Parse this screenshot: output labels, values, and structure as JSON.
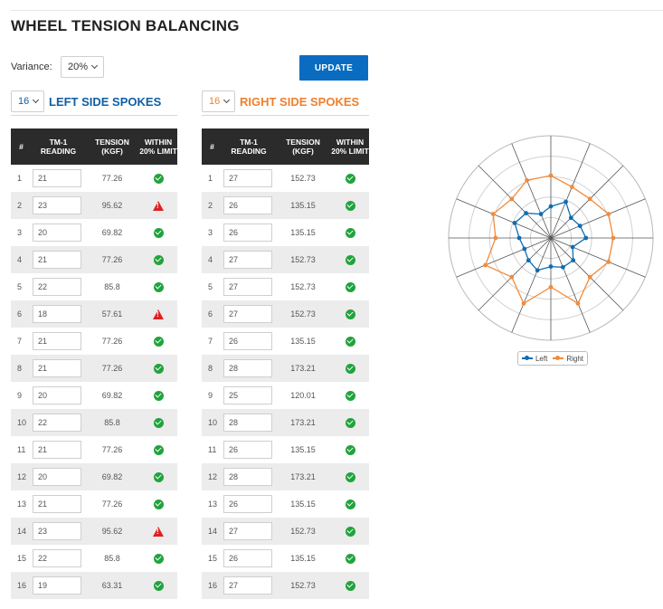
{
  "page": {
    "title": "WHEEL TENSION BALANCING"
  },
  "controls": {
    "variance_label": "Variance:",
    "variance_value": "20%",
    "update_label": "UPDATE"
  },
  "left": {
    "count": "16",
    "title": "LEFT SIDE SPOKES",
    "color": "#0d5fa6",
    "headers": [
      "#",
      "TM-1 READING",
      "TENSION (KGF)",
      "WITHIN 20% LIMIT"
    ],
    "rows": [
      {
        "n": "1",
        "reading": "21",
        "tension": "77.26",
        "status": "ok"
      },
      {
        "n": "2",
        "reading": "23",
        "tension": "95.62",
        "status": "warn"
      },
      {
        "n": "3",
        "reading": "20",
        "tension": "69.82",
        "status": "ok"
      },
      {
        "n": "4",
        "reading": "21",
        "tension": "77.26",
        "status": "ok"
      },
      {
        "n": "5",
        "reading": "22",
        "tension": "85.8",
        "status": "ok"
      },
      {
        "n": "6",
        "reading": "18",
        "tension": "57.61",
        "status": "warn"
      },
      {
        "n": "7",
        "reading": "21",
        "tension": "77.26",
        "status": "ok"
      },
      {
        "n": "8",
        "reading": "21",
        "tension": "77.26",
        "status": "ok"
      },
      {
        "n": "9",
        "reading": "20",
        "tension": "69.82",
        "status": "ok"
      },
      {
        "n": "10",
        "reading": "22",
        "tension": "85.8",
        "status": "ok"
      },
      {
        "n": "11",
        "reading": "21",
        "tension": "77.26",
        "status": "ok"
      },
      {
        "n": "12",
        "reading": "20",
        "tension": "69.82",
        "status": "ok"
      },
      {
        "n": "13",
        "reading": "21",
        "tension": "77.26",
        "status": "ok"
      },
      {
        "n": "14",
        "reading": "23",
        "tension": "95.62",
        "status": "warn"
      },
      {
        "n": "15",
        "reading": "22",
        "tension": "85.8",
        "status": "ok"
      },
      {
        "n": "16",
        "reading": "19",
        "tension": "63.31",
        "status": "ok"
      }
    ]
  },
  "right": {
    "count": "16",
    "title": "RIGHT SIDE SPOKES",
    "color": "#f07f2c",
    "headers": [
      "#",
      "TM-1 READING",
      "TENSION (KGF)",
      "WITHIN 20% LIMIT"
    ],
    "rows": [
      {
        "n": "1",
        "reading": "27",
        "tension": "152.73",
        "status": "ok"
      },
      {
        "n": "2",
        "reading": "26",
        "tension": "135.15",
        "status": "ok"
      },
      {
        "n": "3",
        "reading": "26",
        "tension": "135.15",
        "status": "ok"
      },
      {
        "n": "4",
        "reading": "27",
        "tension": "152.73",
        "status": "ok"
      },
      {
        "n": "5",
        "reading": "27",
        "tension": "152.73",
        "status": "ok"
      },
      {
        "n": "6",
        "reading": "27",
        "tension": "152.73",
        "status": "ok"
      },
      {
        "n": "7",
        "reading": "26",
        "tension": "135.15",
        "status": "ok"
      },
      {
        "n": "8",
        "reading": "28",
        "tension": "173.21",
        "status": "ok"
      },
      {
        "n": "9",
        "reading": "25",
        "tension": "120.01",
        "status": "ok"
      },
      {
        "n": "10",
        "reading": "28",
        "tension": "173.21",
        "status": "ok"
      },
      {
        "n": "11",
        "reading": "26",
        "tension": "135.15",
        "status": "ok"
      },
      {
        "n": "12",
        "reading": "28",
        "tension": "173.21",
        "status": "ok"
      },
      {
        "n": "13",
        "reading": "26",
        "tension": "135.15",
        "status": "ok"
      },
      {
        "n": "14",
        "reading": "27",
        "tension": "152.73",
        "status": "ok"
      },
      {
        "n": "15",
        "reading": "26",
        "tension": "135.15",
        "status": "ok"
      },
      {
        "n": "16",
        "reading": "27",
        "tension": "152.73",
        "status": "ok"
      }
    ]
  },
  "icons": {
    "ok": "check-circle-icon",
    "warn": "warning-triangle-icon",
    "dropdown": "chevron-down-icon"
  },
  "chart_data": {
    "type": "radar",
    "spokes": 16,
    "rlim": [
      0,
      250
    ],
    "ring_step": 50,
    "grid": true,
    "legend_position": "bottom",
    "series": [
      {
        "name": "Left",
        "color": "#0d6db5",
        "values": [
          77.26,
          95.62,
          69.82,
          77.26,
          85.8,
          57.61,
          77.26,
          77.26,
          69.82,
          85.8,
          77.26,
          69.82,
          77.26,
          95.62,
          85.8,
          63.31
        ]
      },
      {
        "name": "Right",
        "color": "#f28b3b",
        "values": [
          152.73,
          135.15,
          135.15,
          152.73,
          152.73,
          152.73,
          135.15,
          173.21,
          120.01,
          173.21,
          135.15,
          173.21,
          135.15,
          152.73,
          135.15,
          152.73
        ]
      }
    ]
  }
}
